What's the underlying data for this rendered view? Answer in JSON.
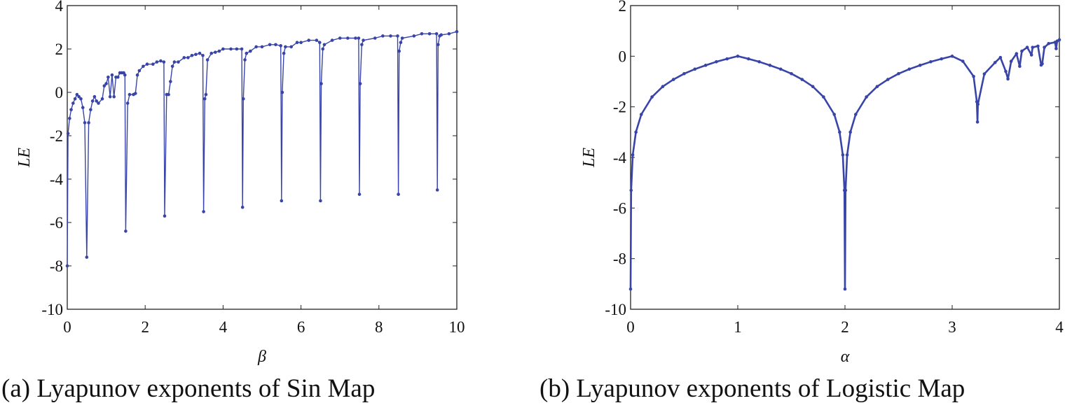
{
  "colors": {
    "series": "#3944a8",
    "axis": "#222222"
  },
  "captions": {
    "a": "(a) Lyapunov exponents of Sin Map",
    "b": "(b) Lyapunov exponents of Logistic Map"
  },
  "chart_data": [
    {
      "type": "line",
      "markers": "dots",
      "xlabel": "β",
      "ylabel": "LE",
      "xlim": [
        0,
        10
      ],
      "ylim": [
        -10,
        4
      ],
      "xticks": [
        0,
        2,
        4,
        6,
        8,
        10
      ],
      "yticks": [
        -10,
        -8,
        -6,
        -4,
        -2,
        0,
        2,
        4
      ],
      "grid": false,
      "series": [
        {
          "x": [
            0,
            0.02,
            0.06,
            0.1,
            0.15,
            0.2,
            0.25,
            0.3,
            0.35,
            0.4,
            0.45,
            0.5,
            0.55,
            0.6,
            0.65,
            0.7,
            0.75,
            0.8,
            0.9,
            0.95,
            1.0,
            1.05,
            1.1,
            1.15,
            1.2,
            1.25,
            1.3,
            1.35,
            1.4,
            1.45,
            1.48,
            1.5,
            1.55,
            1.6,
            1.7,
            1.75,
            1.8,
            1.85,
            1.95,
            2.05,
            2.2,
            2.3,
            2.4,
            2.48,
            2.5,
            2.55,
            2.6,
            2.65,
            2.7,
            2.75,
            2.85,
            3.0,
            3.1,
            3.2,
            3.3,
            3.4,
            3.48,
            3.5,
            3.53,
            3.56,
            3.6,
            3.7,
            3.8,
            3.9,
            4.0,
            4.2,
            4.35,
            4.48,
            4.5,
            4.52,
            4.56,
            4.6,
            4.7,
            4.85,
            5.0,
            5.2,
            5.35,
            5.48,
            5.5,
            5.52,
            5.56,
            5.6,
            5.75,
            5.9,
            6.0,
            6.2,
            6.4,
            6.48,
            6.5,
            6.52,
            6.56,
            6.6,
            6.8,
            7.0,
            7.2,
            7.4,
            7.48,
            7.5,
            7.52,
            7.56,
            7.6,
            7.9,
            8.1,
            8.3,
            8.48,
            8.5,
            8.52,
            8.56,
            8.6,
            8.9,
            9.1,
            9.3,
            9.48,
            9.5,
            9.52,
            9.56,
            9.6,
            9.8,
            10.0
          ],
          "y": [
            -8.0,
            -1.9,
            -1.2,
            -0.8,
            -0.5,
            -0.3,
            -0.1,
            -0.2,
            -0.3,
            -0.7,
            -1.4,
            -7.6,
            -1.4,
            -0.8,
            -0.4,
            -0.2,
            -0.4,
            -0.5,
            -0.3,
            0.3,
            0.4,
            0.7,
            -0.2,
            0.8,
            -0.2,
            0.7,
            0.7,
            0.9,
            0.9,
            0.9,
            0.8,
            -6.4,
            -0.5,
            -0.1,
            -0.1,
            -0.05,
            0.8,
            1.0,
            1.2,
            1.3,
            1.3,
            1.4,
            1.45,
            1.4,
            -5.7,
            -0.1,
            -0.1,
            0.5,
            1.2,
            1.4,
            1.4,
            1.6,
            1.6,
            1.7,
            1.75,
            1.8,
            1.7,
            -5.5,
            -0.3,
            -0.1,
            1.5,
            1.8,
            1.85,
            1.9,
            2.0,
            2.0,
            2.0,
            2.0,
            -5.3,
            -0.3,
            1.5,
            1.8,
            1.9,
            2.1,
            2.1,
            2.2,
            2.2,
            2.15,
            -5.0,
            0.0,
            1.8,
            2.1,
            2.1,
            2.3,
            2.3,
            2.4,
            2.4,
            2.3,
            -5.0,
            0.4,
            2.0,
            2.2,
            2.4,
            2.5,
            2.5,
            2.5,
            2.5,
            -4.7,
            0.4,
            2.2,
            2.4,
            2.5,
            2.6,
            2.6,
            2.6,
            -4.7,
            1.9,
            2.3,
            2.5,
            2.6,
            2.7,
            2.7,
            2.7,
            -4.5,
            2.2,
            2.6,
            2.65,
            2.7,
            2.8
          ]
        }
      ]
    },
    {
      "type": "line",
      "markers": "dots",
      "xlabel": "α",
      "ylabel": "LE",
      "xlim": [
        0,
        4
      ],
      "ylim": [
        -10,
        2
      ],
      "xticks": [
        0,
        1,
        2,
        3,
        4
      ],
      "yticks": [
        -10,
        -8,
        -6,
        -4,
        -2,
        0,
        2
      ],
      "grid": false,
      "series": [
        {
          "x": [
            0,
            0.005,
            0.02,
            0.05,
            0.1,
            0.2,
            0.3,
            0.4,
            0.5,
            0.6,
            0.7,
            0.8,
            0.9,
            1.0,
            1.1,
            1.2,
            1.3,
            1.4,
            1.5,
            1.6,
            1.7,
            1.8,
            1.9,
            1.95,
            1.98,
            1.995,
            2.0,
            2.005,
            2.02,
            2.05,
            2.1,
            2.2,
            2.3,
            2.4,
            2.5,
            2.6,
            2.7,
            2.8,
            2.9,
            3.0,
            3.1,
            3.2,
            3.23,
            3.236,
            3.24,
            3.3,
            3.4,
            3.45,
            3.5,
            3.52,
            3.55,
            3.6,
            3.63,
            3.65,
            3.7,
            3.74,
            3.75,
            3.8,
            3.83,
            3.84,
            3.86,
            3.9,
            3.96,
            3.97,
            3.98,
            4.0
          ],
          "y": [
            -9.2,
            -5.3,
            -3.9,
            -3.0,
            -2.3,
            -1.61,
            -1.2,
            -0.92,
            -0.69,
            -0.51,
            -0.36,
            -0.22,
            -0.105,
            0,
            -0.105,
            -0.22,
            -0.36,
            -0.51,
            -0.69,
            -0.92,
            -1.2,
            -1.61,
            -2.3,
            -3.0,
            -3.9,
            -5.3,
            -9.2,
            -5.3,
            -3.9,
            -3.0,
            -2.3,
            -1.61,
            -1.2,
            -0.92,
            -0.69,
            -0.51,
            -0.36,
            -0.22,
            -0.105,
            0,
            -0.2,
            -0.8,
            -1.8,
            -2.6,
            -1.9,
            -0.7,
            -0.25,
            -0.05,
            -0.6,
            -0.9,
            -0.2,
            0.1,
            -0.4,
            0.2,
            0.35,
            0.05,
            0.35,
            0.4,
            -0.35,
            -0.3,
            0.35,
            0.5,
            0.55,
            0.3,
            0.6,
            0.65
          ]
        }
      ]
    }
  ]
}
